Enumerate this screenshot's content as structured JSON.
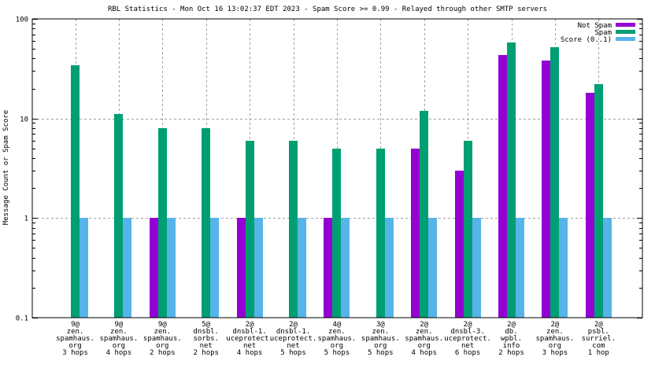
{
  "chart_data": {
    "type": "bar",
    "title": "RBL Statistics - Mon Oct 16 13:02:37 EDT 2023 - Spam Score >= 0.99 - Relayed through other SMTP servers",
    "xlabel": "",
    "ylabel": "Message Count or Spam Score",
    "yscale": "log",
    "ylim": [
      0.1,
      100
    ],
    "yticks": [
      {
        "value": 100,
        "label": "100"
      },
      {
        "value": 10,
        "label": "10"
      },
      {
        "value": 1,
        "label": "1"
      },
      {
        "value": 0.1,
        "label": "0.1"
      }
    ],
    "grid": true,
    "legend_position": "top-right",
    "categories": [
      [
        "9@",
        "zen.",
        "spamhaus.",
        "org",
        "3 hops"
      ],
      [
        "9@",
        "zen.",
        "spamhaus.",
        "org",
        "4 hops"
      ],
      [
        "9@",
        "zen.",
        "spamhaus.",
        "org",
        "2 hops"
      ],
      [
        "5@",
        "dnsbl.",
        "sorbs.",
        "net",
        "2 hops"
      ],
      [
        "2@",
        "dnsbl-1.",
        "uceprotect.",
        "net",
        "4 hops"
      ],
      [
        "2@",
        "dnsbl-1.",
        "uceprotect.",
        "net",
        "5 hops"
      ],
      [
        "4@",
        "zen.",
        "spamhaus.",
        "org",
        "5 hops"
      ],
      [
        "3@",
        "zen.",
        "spamhaus.",
        "org",
        "5 hops"
      ],
      [
        "2@",
        "zen.",
        "spamhaus.",
        "org",
        "4 hops"
      ],
      [
        "2@",
        "dnsbl-3.",
        "uceprotect.",
        "net",
        "6 hops"
      ],
      [
        "2@",
        "db.",
        "wpbl.",
        "info",
        "2 hops"
      ],
      [
        "2@",
        "zen.",
        "spamhaus.",
        "org",
        "3 hops"
      ],
      [
        "2@",
        "psbl.",
        "surriel.",
        "com",
        "1 hop"
      ]
    ],
    "series": [
      {
        "name": "Not Spam",
        "color": "#9400d3",
        "values": [
          0,
          0,
          1,
          0,
          1,
          0,
          1,
          0,
          5,
          3,
          43,
          38,
          18
        ]
      },
      {
        "name": "Spam",
        "color": "#009e73",
        "values": [
          34,
          11,
          8,
          8,
          6,
          6,
          5,
          5,
          12,
          6,
          58,
          52,
          22
        ]
      },
      {
        "name": "Score (0..1)",
        "color": "#56b4e9",
        "values": [
          1,
          1,
          1,
          1,
          1,
          1,
          1,
          1,
          1,
          1,
          1,
          1,
          1
        ]
      }
    ]
  }
}
